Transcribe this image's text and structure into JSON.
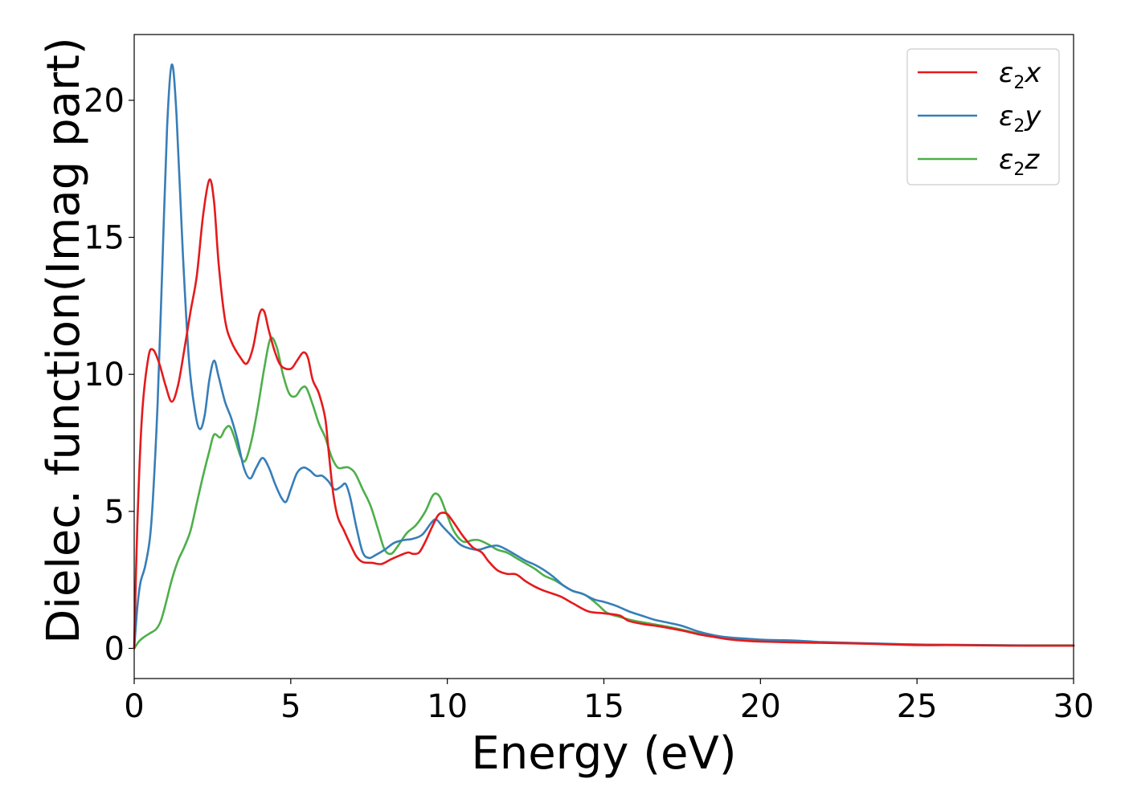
{
  "chart_data": {
    "type": "line",
    "xlabel": "Energy (eV)",
    "ylabel": "Dielec. function(Imag part)",
    "xlim": [
      0,
      30
    ],
    "ylim": [
      -1.1,
      22.4
    ],
    "xticks": [
      0,
      5,
      10,
      15,
      20,
      25,
      30
    ],
    "yticks": [
      0,
      5,
      10,
      15,
      20
    ],
    "grid": false,
    "legend_position": "top-right",
    "series": [
      {
        "name": "ε2x",
        "legend": {
          "base": "ε",
          "sub": "2",
          "suffix": "x"
        },
        "color": "#e41a1c",
        "points": [
          [
            0,
            0
          ],
          [
            0.1,
            4.5
          ],
          [
            0.25,
            8.5
          ],
          [
            0.45,
            10.6
          ],
          [
            0.6,
            10.9
          ],
          [
            0.8,
            10.4
          ],
          [
            1.0,
            9.6
          ],
          [
            1.2,
            9.0
          ],
          [
            1.4,
            9.6
          ],
          [
            1.6,
            10.9
          ],
          [
            1.8,
            12.3
          ],
          [
            2.0,
            13.6
          ],
          [
            2.2,
            15.8
          ],
          [
            2.4,
            17.1
          ],
          [
            2.55,
            16.3
          ],
          [
            2.7,
            14.0
          ],
          [
            2.9,
            12.0
          ],
          [
            3.1,
            11.2
          ],
          [
            3.4,
            10.6
          ],
          [
            3.6,
            10.4
          ],
          [
            3.8,
            11.0
          ],
          [
            4.0,
            12.2
          ],
          [
            4.15,
            12.3
          ],
          [
            4.3,
            11.6
          ],
          [
            4.5,
            10.8
          ],
          [
            4.7,
            10.3
          ],
          [
            5.0,
            10.2
          ],
          [
            5.2,
            10.5
          ],
          [
            5.4,
            10.8
          ],
          [
            5.55,
            10.6
          ],
          [
            5.7,
            9.8
          ],
          [
            5.9,
            9.3
          ],
          [
            6.1,
            8.4
          ],
          [
            6.2,
            7.3
          ],
          [
            6.35,
            5.7
          ],
          [
            6.5,
            4.8
          ],
          [
            6.7,
            4.3
          ],
          [
            6.9,
            3.8
          ],
          [
            7.1,
            3.35
          ],
          [
            7.3,
            3.15
          ],
          [
            7.6,
            3.12
          ],
          [
            7.9,
            3.08
          ],
          [
            8.2,
            3.25
          ],
          [
            8.5,
            3.4
          ],
          [
            8.75,
            3.5
          ],
          [
            8.9,
            3.45
          ],
          [
            9.1,
            3.5
          ],
          [
            9.3,
            3.9
          ],
          [
            9.5,
            4.4
          ],
          [
            9.7,
            4.85
          ],
          [
            9.85,
            4.95
          ],
          [
            10.0,
            4.9
          ],
          [
            10.2,
            4.6
          ],
          [
            10.5,
            4.1
          ],
          [
            10.8,
            3.7
          ],
          [
            11.1,
            3.5
          ],
          [
            11.3,
            3.2
          ],
          [
            11.6,
            2.85
          ],
          [
            11.9,
            2.72
          ],
          [
            12.2,
            2.7
          ],
          [
            12.5,
            2.45
          ],
          [
            12.8,
            2.25
          ],
          [
            13.1,
            2.1
          ],
          [
            13.6,
            1.9
          ],
          [
            14.0,
            1.65
          ],
          [
            14.5,
            1.35
          ],
          [
            15.0,
            1.28
          ],
          [
            15.5,
            1.2
          ],
          [
            15.8,
            1.0
          ],
          [
            16.3,
            0.88
          ],
          [
            16.8,
            0.8
          ],
          [
            17.5,
            0.65
          ],
          [
            18.0,
            0.52
          ],
          [
            18.5,
            0.42
          ],
          [
            19.0,
            0.33
          ],
          [
            19.5,
            0.28
          ],
          [
            20.0,
            0.25
          ],
          [
            21.0,
            0.22
          ],
          [
            22.0,
            0.2
          ],
          [
            23.0,
            0.18
          ],
          [
            24.0,
            0.15
          ],
          [
            25.0,
            0.12
          ],
          [
            26.0,
            0.12
          ],
          [
            27.0,
            0.11
          ],
          [
            28.0,
            0.1
          ],
          [
            29.0,
            0.1
          ],
          [
            30.0,
            0.1
          ]
        ]
      },
      {
        "name": "ε2y",
        "legend": {
          "base": "ε",
          "sub": "2",
          "suffix": "y"
        },
        "color": "#377eb8",
        "points": [
          [
            0,
            0
          ],
          [
            0.1,
            1.5
          ],
          [
            0.2,
            2.4
          ],
          [
            0.35,
            3.0
          ],
          [
            0.5,
            4.0
          ],
          [
            0.6,
            5.5
          ],
          [
            0.75,
            9.0
          ],
          [
            0.9,
            14.0
          ],
          [
            1.05,
            19.0
          ],
          [
            1.2,
            21.3
          ],
          [
            1.35,
            19.5
          ],
          [
            1.55,
            14.5
          ],
          [
            1.75,
            10.5
          ],
          [
            1.95,
            8.6
          ],
          [
            2.1,
            8.0
          ],
          [
            2.25,
            8.5
          ],
          [
            2.4,
            9.8
          ],
          [
            2.55,
            10.5
          ],
          [
            2.7,
            9.9
          ],
          [
            2.9,
            9.0
          ],
          [
            3.1,
            8.4
          ],
          [
            3.3,
            7.6
          ],
          [
            3.5,
            6.6
          ],
          [
            3.7,
            6.2
          ],
          [
            3.9,
            6.6
          ],
          [
            4.1,
            6.95
          ],
          [
            4.3,
            6.6
          ],
          [
            4.5,
            6.0
          ],
          [
            4.7,
            5.5
          ],
          [
            4.85,
            5.35
          ],
          [
            5.0,
            5.8
          ],
          [
            5.2,
            6.4
          ],
          [
            5.4,
            6.6
          ],
          [
            5.6,
            6.5
          ],
          [
            5.8,
            6.3
          ],
          [
            6.0,
            6.3
          ],
          [
            6.2,
            6.1
          ],
          [
            6.4,
            5.8
          ],
          [
            6.6,
            5.9
          ],
          [
            6.75,
            6.0
          ],
          [
            6.9,
            5.5
          ],
          [
            7.1,
            4.4
          ],
          [
            7.3,
            3.5
          ],
          [
            7.5,
            3.3
          ],
          [
            7.7,
            3.4
          ],
          [
            8.0,
            3.6
          ],
          [
            8.3,
            3.85
          ],
          [
            8.6,
            3.95
          ],
          [
            8.9,
            4.0
          ],
          [
            9.2,
            4.15
          ],
          [
            9.5,
            4.6
          ],
          [
            9.65,
            4.7
          ],
          [
            9.85,
            4.45
          ],
          [
            10.1,
            4.15
          ],
          [
            10.4,
            3.8
          ],
          [
            10.7,
            3.65
          ],
          [
            11.0,
            3.6
          ],
          [
            11.3,
            3.7
          ],
          [
            11.6,
            3.75
          ],
          [
            11.9,
            3.6
          ],
          [
            12.2,
            3.4
          ],
          [
            12.5,
            3.2
          ],
          [
            12.8,
            3.05
          ],
          [
            13.1,
            2.85
          ],
          [
            13.4,
            2.6
          ],
          [
            13.7,
            2.3
          ],
          [
            14.0,
            2.1
          ],
          [
            14.3,
            2.0
          ],
          [
            14.7,
            1.78
          ],
          [
            15.0,
            1.7
          ],
          [
            15.4,
            1.55
          ],
          [
            15.8,
            1.35
          ],
          [
            16.2,
            1.2
          ],
          [
            16.6,
            1.05
          ],
          [
            17.0,
            0.95
          ],
          [
            17.5,
            0.82
          ],
          [
            18.0,
            0.62
          ],
          [
            18.5,
            0.48
          ],
          [
            19.0,
            0.4
          ],
          [
            19.5,
            0.36
          ],
          [
            20.0,
            0.32
          ],
          [
            20.5,
            0.3
          ],
          [
            21.0,
            0.29
          ],
          [
            21.5,
            0.26
          ],
          [
            22.0,
            0.23
          ],
          [
            23.0,
            0.2
          ],
          [
            24.0,
            0.17
          ],
          [
            25.0,
            0.14
          ],
          [
            26.0,
            0.13
          ],
          [
            27.0,
            0.12
          ],
          [
            28.0,
            0.11
          ],
          [
            29.0,
            0.1
          ],
          [
            30.0,
            0.1
          ]
        ]
      },
      {
        "name": "ε2z",
        "legend": {
          "base": "ε",
          "sub": "2",
          "suffix": "z"
        },
        "color": "#4daf4a",
        "points": [
          [
            0,
            0
          ],
          [
            0.15,
            0.25
          ],
          [
            0.3,
            0.4
          ],
          [
            0.5,
            0.55
          ],
          [
            0.7,
            0.7
          ],
          [
            0.85,
            1.0
          ],
          [
            1.0,
            1.6
          ],
          [
            1.2,
            2.5
          ],
          [
            1.4,
            3.2
          ],
          [
            1.6,
            3.7
          ],
          [
            1.8,
            4.3
          ],
          [
            2.0,
            5.3
          ],
          [
            2.2,
            6.3
          ],
          [
            2.4,
            7.2
          ],
          [
            2.55,
            7.8
          ],
          [
            2.75,
            7.7
          ],
          [
            2.9,
            8.0
          ],
          [
            3.05,
            8.1
          ],
          [
            3.2,
            7.7
          ],
          [
            3.4,
            7.0
          ],
          [
            3.55,
            6.85
          ],
          [
            3.75,
            7.6
          ],
          [
            3.95,
            8.8
          ],
          [
            4.15,
            10.2
          ],
          [
            4.35,
            11.3
          ],
          [
            4.55,
            11.0
          ],
          [
            4.75,
            10.0
          ],
          [
            4.95,
            9.3
          ],
          [
            5.15,
            9.2
          ],
          [
            5.35,
            9.5
          ],
          [
            5.5,
            9.5
          ],
          [
            5.7,
            8.9
          ],
          [
            5.9,
            8.2
          ],
          [
            6.1,
            7.7
          ],
          [
            6.3,
            7.0
          ],
          [
            6.5,
            6.6
          ],
          [
            6.7,
            6.6
          ],
          [
            6.85,
            6.6
          ],
          [
            7.05,
            6.4
          ],
          [
            7.3,
            5.8
          ],
          [
            7.55,
            5.2
          ],
          [
            7.8,
            4.3
          ],
          [
            8.0,
            3.6
          ],
          [
            8.2,
            3.45
          ],
          [
            8.4,
            3.7
          ],
          [
            8.7,
            4.2
          ],
          [
            9.0,
            4.5
          ],
          [
            9.3,
            5.0
          ],
          [
            9.55,
            5.6
          ],
          [
            9.75,
            5.55
          ],
          [
            9.95,
            5.0
          ],
          [
            10.2,
            4.3
          ],
          [
            10.5,
            3.9
          ],
          [
            10.8,
            3.95
          ],
          [
            11.0,
            3.95
          ],
          [
            11.3,
            3.8
          ],
          [
            11.6,
            3.6
          ],
          [
            11.9,
            3.5
          ],
          [
            12.2,
            3.3
          ],
          [
            12.5,
            3.1
          ],
          [
            12.8,
            2.9
          ],
          [
            13.1,
            2.65
          ],
          [
            13.4,
            2.5
          ],
          [
            13.7,
            2.3
          ],
          [
            14.0,
            2.1
          ],
          [
            14.4,
            1.95
          ],
          [
            14.8,
            1.6
          ],
          [
            15.1,
            1.3
          ],
          [
            15.5,
            1.15
          ],
          [
            16.0,
            1.0
          ],
          [
            16.5,
            0.9
          ],
          [
            17.0,
            0.8
          ],
          [
            17.5,
            0.68
          ],
          [
            18.0,
            0.55
          ],
          [
            18.5,
            0.45
          ],
          [
            19.0,
            0.38
          ],
          [
            19.5,
            0.35
          ],
          [
            20.0,
            0.3
          ],
          [
            21.0,
            0.26
          ],
          [
            22.0,
            0.22
          ],
          [
            23.0,
            0.19
          ],
          [
            24.0,
            0.16
          ],
          [
            25.0,
            0.14
          ],
          [
            26.0,
            0.13
          ],
          [
            27.0,
            0.12
          ],
          [
            28.0,
            0.11
          ],
          [
            29.0,
            0.11
          ],
          [
            30.0,
            0.11
          ]
        ]
      }
    ]
  }
}
